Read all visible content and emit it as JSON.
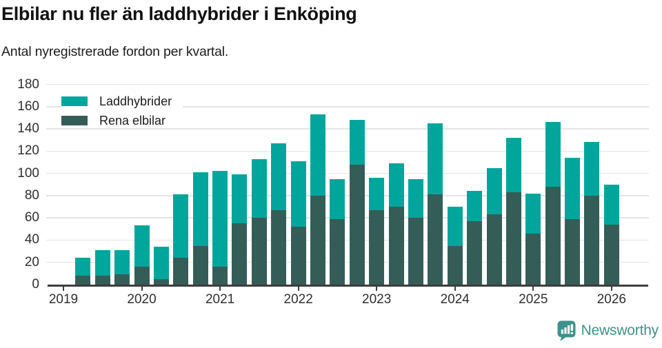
{
  "header": {
    "title": "Elbilar nu fler än laddhybrider i Enköping",
    "subtitle": "Antal nyregistrerade fordon per kvartal."
  },
  "legend": {
    "items": [
      {
        "label": "Laddhybrider",
        "color": "#00a69c"
      },
      {
        "label": "Rena elbilar",
        "color": "#355d57"
      }
    ]
  },
  "chart_data": {
    "type": "bar",
    "stacked": true,
    "title": "Elbilar nu fler än laddhybrider i Enköping",
    "subtitle": "Antal nyregistrerade fordon per kvartal.",
    "xlabel": "",
    "ylabel": "",
    "ylim": [
      0,
      180
    ],
    "grid": "horizontal",
    "legend_position": "top-left",
    "y_ticks": [
      0,
      20,
      40,
      60,
      80,
      100,
      120,
      140,
      160,
      180
    ],
    "x_tick_labels": [
      "2019",
      "2020",
      "2021",
      "2022",
      "2023",
      "2024",
      "2025",
      "2026"
    ],
    "categories": [
      "2019 Q2",
      "2019 Q3",
      "2019 Q4",
      "2020 Q1",
      "2020 Q2",
      "2020 Q3",
      "2020 Q4",
      "2021 Q1",
      "2021 Q2",
      "2021 Q3",
      "2021 Q4",
      "2022 Q1",
      "2022 Q2",
      "2022 Q3",
      "2022 Q4",
      "2023 Q1",
      "2023 Q2",
      "2023 Q3",
      "2023 Q4",
      "2024 Q1",
      "2024 Q2",
      "2024 Q3",
      "2024 Q4",
      "2025 Q1",
      "2025 Q2",
      "2025 Q3",
      "2025 Q4",
      "2026 Q1"
    ],
    "series": [
      {
        "name": "Laddhybrider",
        "color": "#00a69c",
        "stack_order": "top",
        "values": [
          16,
          23,
          22,
          37,
          29,
          57,
          66,
          86,
          44,
          53,
          60,
          59,
          73,
          36,
          40,
          29,
          39,
          35,
          64,
          35,
          27,
          42,
          49,
          36,
          58,
          55,
          48,
          36
        ]
      },
      {
        "name": "Rena elbilar",
        "color": "#355d57",
        "stack_order": "bottom",
        "values": [
          8,
          8,
          9,
          16,
          5,
          24,
          35,
          16,
          55,
          60,
          67,
          52,
          80,
          59,
          108,
          67,
          70,
          60,
          81,
          35,
          57,
          63,
          83,
          46,
          88,
          59,
          80,
          54
        ]
      }
    ],
    "stacked_totals": [
      24,
      31,
      31,
      53,
      34,
      81,
      101,
      102,
      99,
      113,
      127,
      111,
      153,
      95,
      148,
      96,
      109,
      95,
      145,
      70,
      84,
      105,
      132,
      82,
      146,
      114,
      128,
      90
    ]
  },
  "footer": {
    "brand": "Newsworthy"
  },
  "icons": {
    "brand_logo": "speech-bubble-bar-chart-exclamation-icon"
  },
  "colors": {
    "laddhybrider": "#00a69c",
    "rena_elbilar": "#355d57",
    "gridline": "#e4e4e4",
    "axis": "#3d3d3d",
    "brand": "#3e928b",
    "background": "#ffffff",
    "title_text": "#111111",
    "tick_text": "#2e2e2e"
  }
}
